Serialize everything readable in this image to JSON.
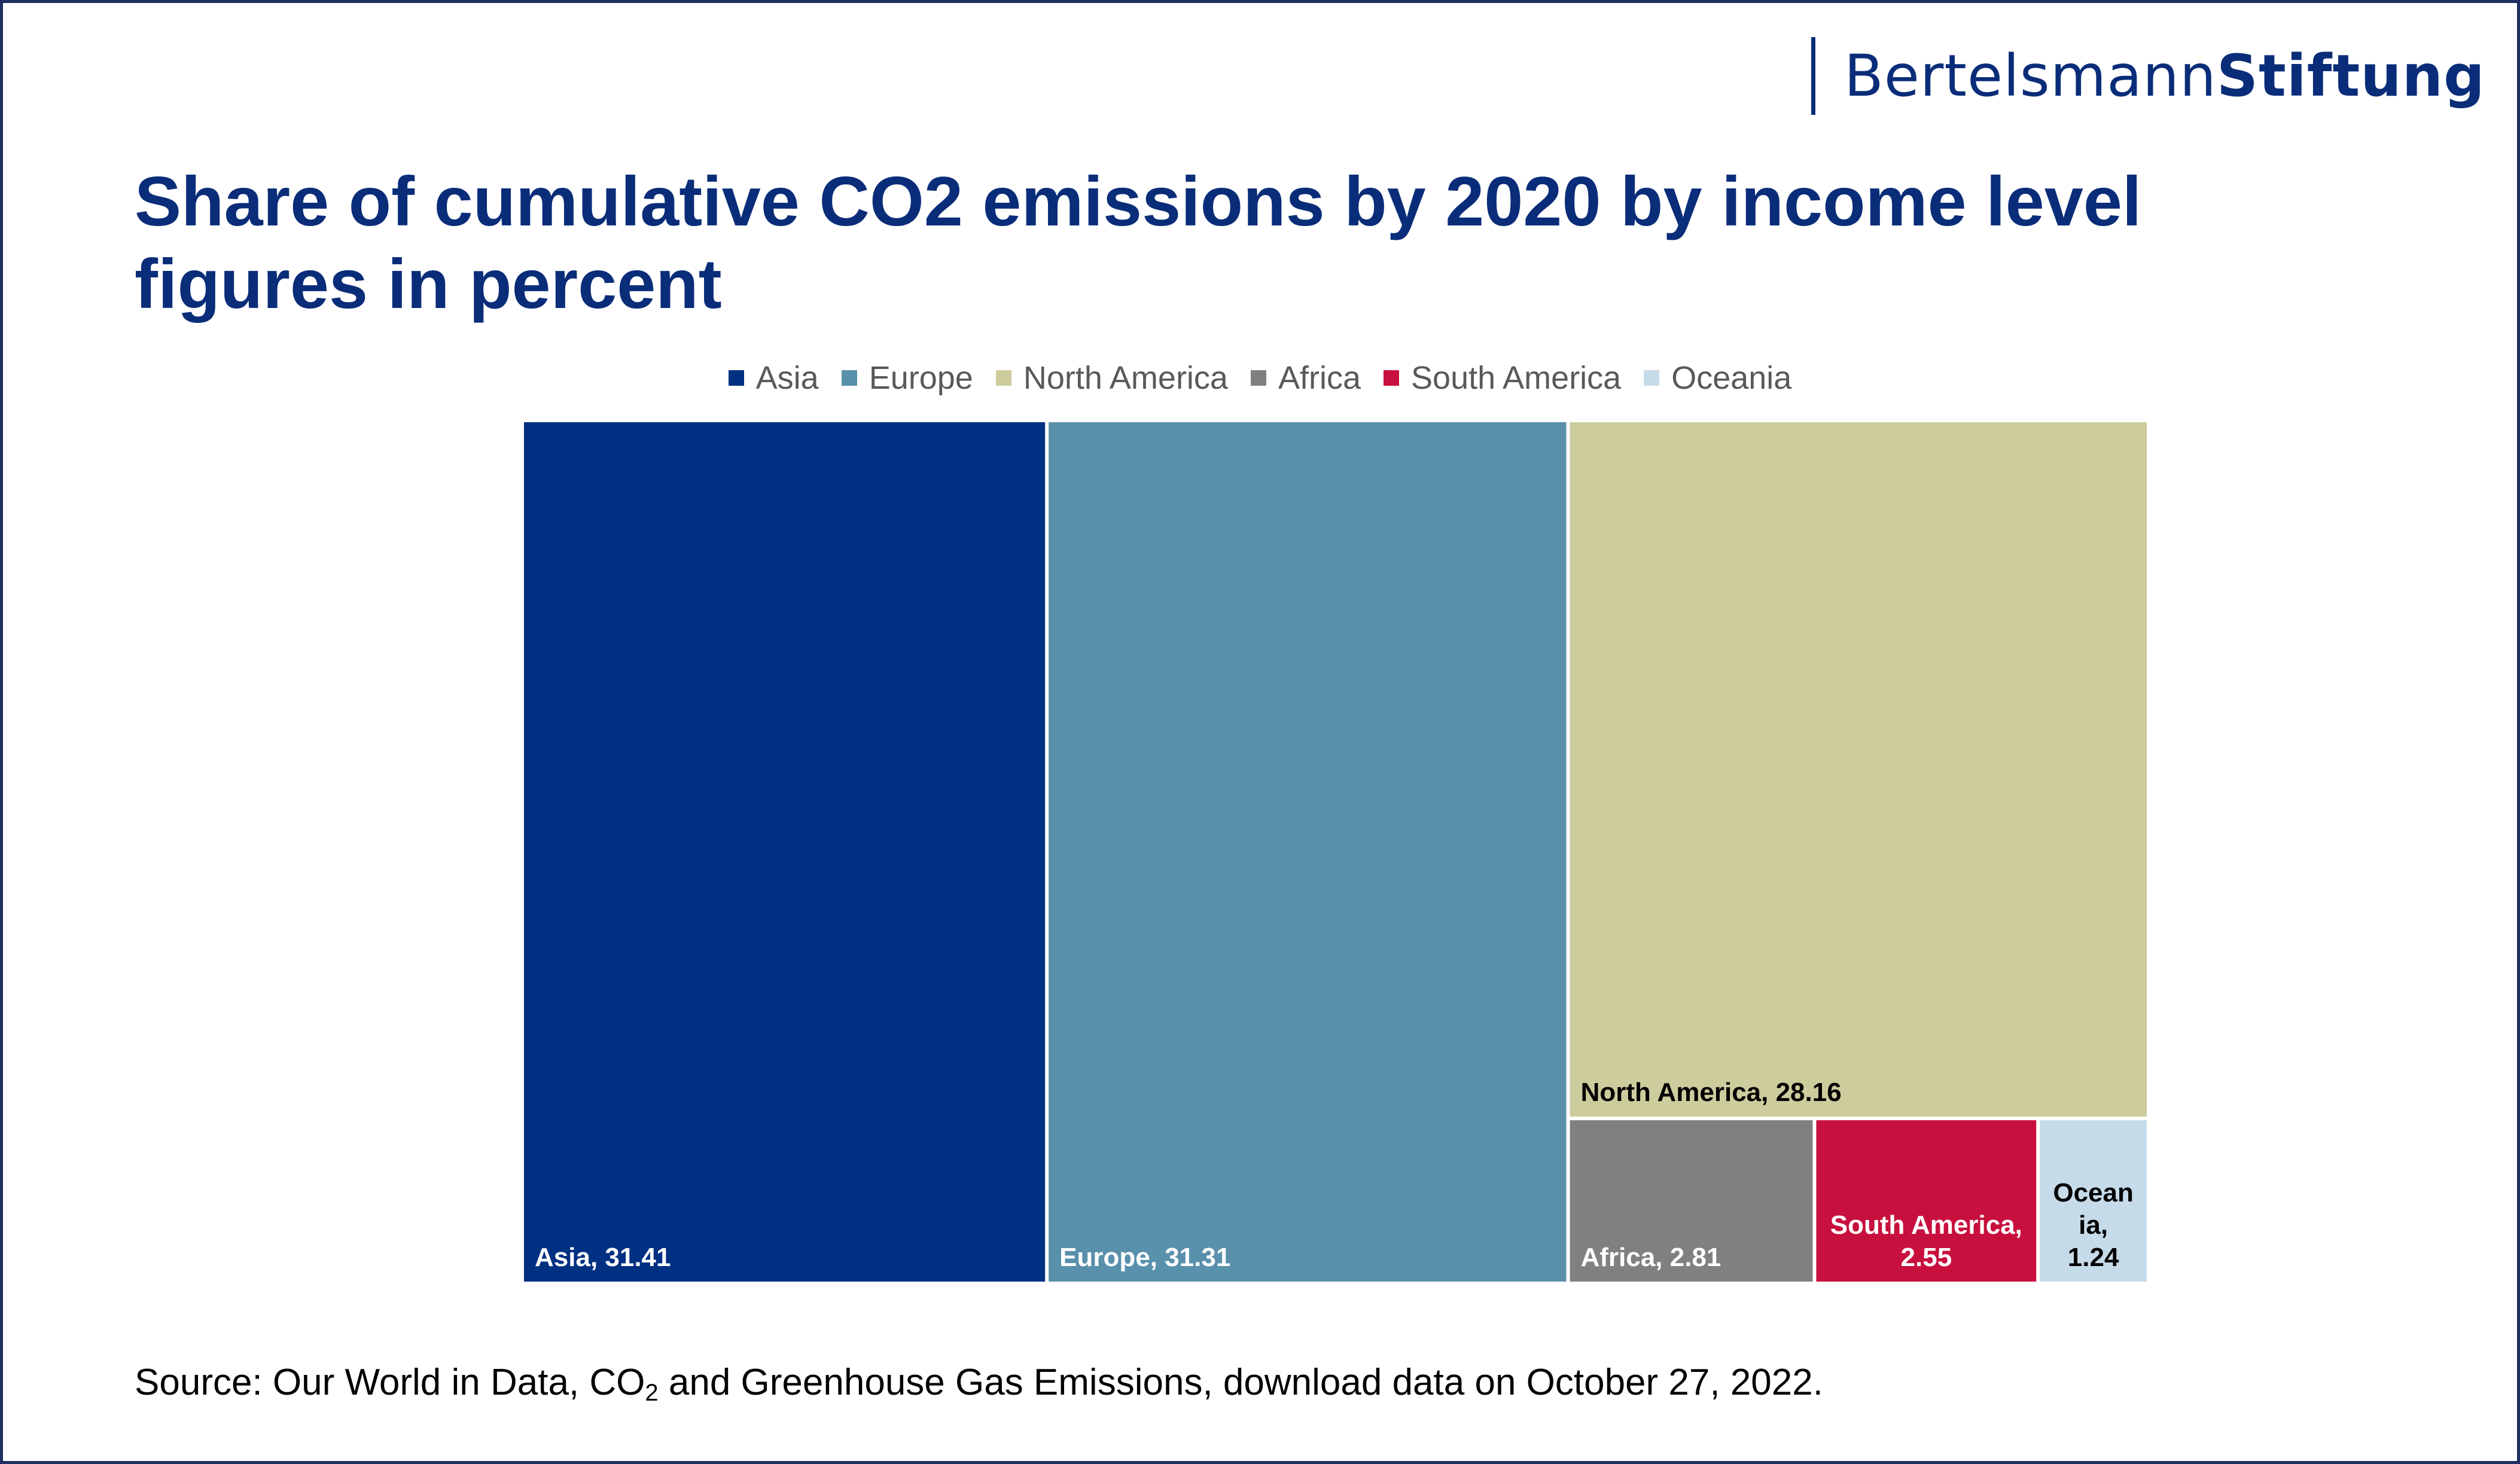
{
  "brand": {
    "part1": "Bertelsmann",
    "part2": "Stiftung"
  },
  "title": {
    "line1": "Share of cumulative CO2 emissions by 2020 by income level",
    "line2": "figures in percent"
  },
  "legend": [
    {
      "label": "Asia",
      "color": "#003082"
    },
    {
      "label": "Europe",
      "color": "#5990ab"
    },
    {
      "label": "North America",
      "color": "#cdcc9d"
    },
    {
      "label": "Africa",
      "color": "#808080"
    },
    {
      "label": "South America",
      "color": "#c8103e"
    },
    {
      "label": "Oceania",
      "color": "#c6dbea"
    }
  ],
  "chart_data": {
    "type": "treemap",
    "title": "Share of cumulative CO2 emissions by 2020 by income level",
    "subtitle": "figures in percent",
    "series": [
      {
        "name": "Asia",
        "value": 31.41,
        "label_lines": [
          "Asia, 31.41"
        ],
        "color": "#003082",
        "label_color": "#ffffff"
      },
      {
        "name": "Europe",
        "value": 31.31,
        "label_lines": [
          "Europe, 31.31"
        ],
        "color": "#5990ab",
        "label_color": "#ffffff"
      },
      {
        "name": "North America",
        "value": 28.16,
        "label_lines": [
          "North America, 28.16"
        ],
        "color": "#cdcc9d",
        "label_color": "#000000"
      },
      {
        "name": "Africa",
        "value": 2.81,
        "label_lines": [
          "Africa, 2.81"
        ],
        "color": "#808080",
        "label_color": "#ffffff"
      },
      {
        "name": "South America",
        "value": 2.55,
        "label_lines": [
          "South America,",
          "2.55"
        ],
        "color": "#c8103e",
        "label_color": "#ffffff"
      },
      {
        "name": "Oceania",
        "value": 1.24,
        "label_lines": [
          "Ocean",
          "ia,",
          "1.24"
        ],
        "color": "#c6dbea",
        "label_color": "#000000"
      }
    ],
    "legend_position": "top"
  },
  "source": {
    "prefix": "Source: Our World in Data, CO",
    "subscript": "2",
    "suffix": " and Greenhouse Gas Emissions, download data on October 27, 2022."
  }
}
